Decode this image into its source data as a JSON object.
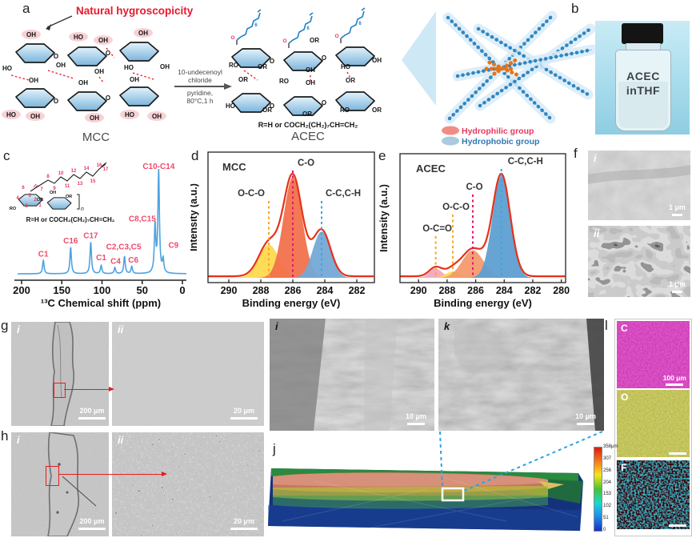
{
  "labels": {
    "a": "a",
    "b": "b",
    "c": "c",
    "d": "d",
    "e": "e",
    "f": "f",
    "g": "g",
    "h": "h",
    "i": "i",
    "j": "j",
    "k": "k",
    "l": "l"
  },
  "panel_a": {
    "annotation": "Natural hygroscopicity",
    "reaction_line1": "10-undecenoyl",
    "reaction_line2": "chloride",
    "reaction_line3": "pyridine,",
    "reaction_line4": "80°C,1 h",
    "mcc_label": "MCC",
    "acec_label": "ACEC",
    "r_group": "R=H or COCH₂(CH₂)₇CH=CH₂",
    "atoms": {
      "oh": "OH",
      "ho": "HO",
      "or": "OR",
      "ro": "RO",
      "o": "O",
      "six": "6",
      "n": "n"
    },
    "legend_hydrophilic": "Hydrophilic group",
    "legend_hydrophobic": "Hydrophobic group",
    "hydrophilic_color": "#ef8d85",
    "hydrophobic_color": "#a9cadf"
  },
  "panel_b": {
    "vial_line1": "ACEC",
    "vial_line2": "inTHF"
  },
  "panel_c": {
    "r_group": "R=H or COCH₂(CH₂)₇CH=CH₂",
    "carbon_numbers": [
      "1",
      "2",
      "3",
      "4",
      "5",
      "6",
      "7",
      "8",
      "9",
      "10",
      "11",
      "12",
      "13",
      "14",
      "15",
      "16",
      "17"
    ]
  },
  "panel_f": {
    "i": "i",
    "ii": "ii",
    "scale_i": "1 μm",
    "scale_ii": "1 μm"
  },
  "panel_g": {
    "i": "i",
    "ii": "ii",
    "scale_i": "200 μm",
    "scale_ii": "20 μm"
  },
  "panel_h": {
    "i": "i",
    "ii": "ii",
    "scale_i": "200 μm",
    "scale_ii": "20 μm"
  },
  "panel_i": {
    "label": "i",
    "scale": "10 μm"
  },
  "panel_k": {
    "label": "k",
    "scale": "10 μm"
  },
  "panel_j": {
    "colorbar_ticks": [
      "358μm",
      "307",
      "256",
      "204",
      "153",
      "102",
      "51",
      "0"
    ]
  },
  "panel_l": {
    "maps": [
      {
        "element": "C",
        "scale": "100 μm",
        "color": "#cf28a8"
      },
      {
        "element": "O",
        "scale": "",
        "color": "#9a9a22"
      },
      {
        "element": "F",
        "scale": "",
        "color": "#35c8f5"
      }
    ]
  },
  "chart_data": [
    {
      "id": "nmr_acec",
      "type": "line",
      "xlabel": "¹³C Chemical shift (ppm)",
      "xticks": [
        200,
        150,
        100,
        50,
        0
      ],
      "xlim": [
        205,
        -5
      ],
      "line_color": "#4da3e0",
      "peak_label_color": "#ee4b6d",
      "peaks": [
        {
          "label": "C1",
          "ppm": 173,
          "h": 0.13
        },
        {
          "label": "C16",
          "ppm": 139,
          "h": 0.26
        },
        {
          "label": "C17",
          "ppm": 114,
          "h": 0.31
        },
        {
          "label": "C1",
          "ppm": 101,
          "h": 0.08
        },
        {
          "label": "C4",
          "ppm": 84,
          "h": 0.06
        },
        {
          "label": "C2,C3,C5",
          "ppm": 72,
          "h": 0.17
        },
        {
          "label": "C6",
          "ppm": 63,
          "h": 0.07
        },
        {
          "label": "C8,C15",
          "ppm": 34,
          "h": 0.46
        },
        {
          "label": "C10-C14",
          "ppm": 29.5,
          "h": 1.0
        },
        {
          "label": "C9",
          "ppm": 24,
          "h": 0.13
        }
      ]
    },
    {
      "id": "xps_mcc",
      "type": "area",
      "sample": "MCC",
      "xlabel": "Binding energy (eV)",
      "ylabel": "Intensity (a.u.)",
      "xticks": [
        290,
        288,
        286,
        284,
        282
      ],
      "xlim": [
        291.3,
        280.9
      ],
      "envelope_color": "#e63119",
      "components": [
        {
          "label": "O-C-O",
          "center": 287.5,
          "amp": 0.33,
          "sigma": 0.62,
          "fill": "#ffd94f",
          "dash": "#f8a71b"
        },
        {
          "label": "C-O",
          "center": 286.0,
          "amp": 1.0,
          "sigma": 0.58,
          "fill": "#f2714d",
          "dash": "#e5186e"
        },
        {
          "label": "C-C,C-H",
          "center": 284.2,
          "amp": 0.46,
          "sigma": 0.55,
          "fill": "#74a9d6",
          "dash": "#35aade"
        }
      ]
    },
    {
      "id": "xps_acec",
      "type": "area",
      "sample": "ACEC",
      "xlabel": "Binding energy (eV)",
      "ylabel": "Intensity (a.u.)",
      "xticks": [
        290,
        288,
        286,
        284,
        282,
        280
      ],
      "xlim": [
        291.3,
        279.7
      ],
      "envelope_color": "#e63119",
      "components": [
        {
          "label": "O-C=O",
          "center": 288.8,
          "amp": 0.09,
          "sigma": 0.45,
          "fill": "#f3a8bf",
          "dash": "#f8a71b"
        },
        {
          "label": "O-C-O",
          "center": 287.6,
          "amp": 0.06,
          "sigma": 0.5,
          "fill": "#ffd94f",
          "dash": "#f8a71b"
        },
        {
          "label": "C-O",
          "center": 286.2,
          "amp": 0.27,
          "sigma": 0.75,
          "fill": "#f39a6d",
          "dash": "#e5186e"
        },
        {
          "label": "C-C,C-H",
          "center": 284.2,
          "amp": 1.0,
          "sigma": 0.62,
          "fill": "#5e9fd2",
          "dash": "#35aade"
        }
      ]
    }
  ]
}
